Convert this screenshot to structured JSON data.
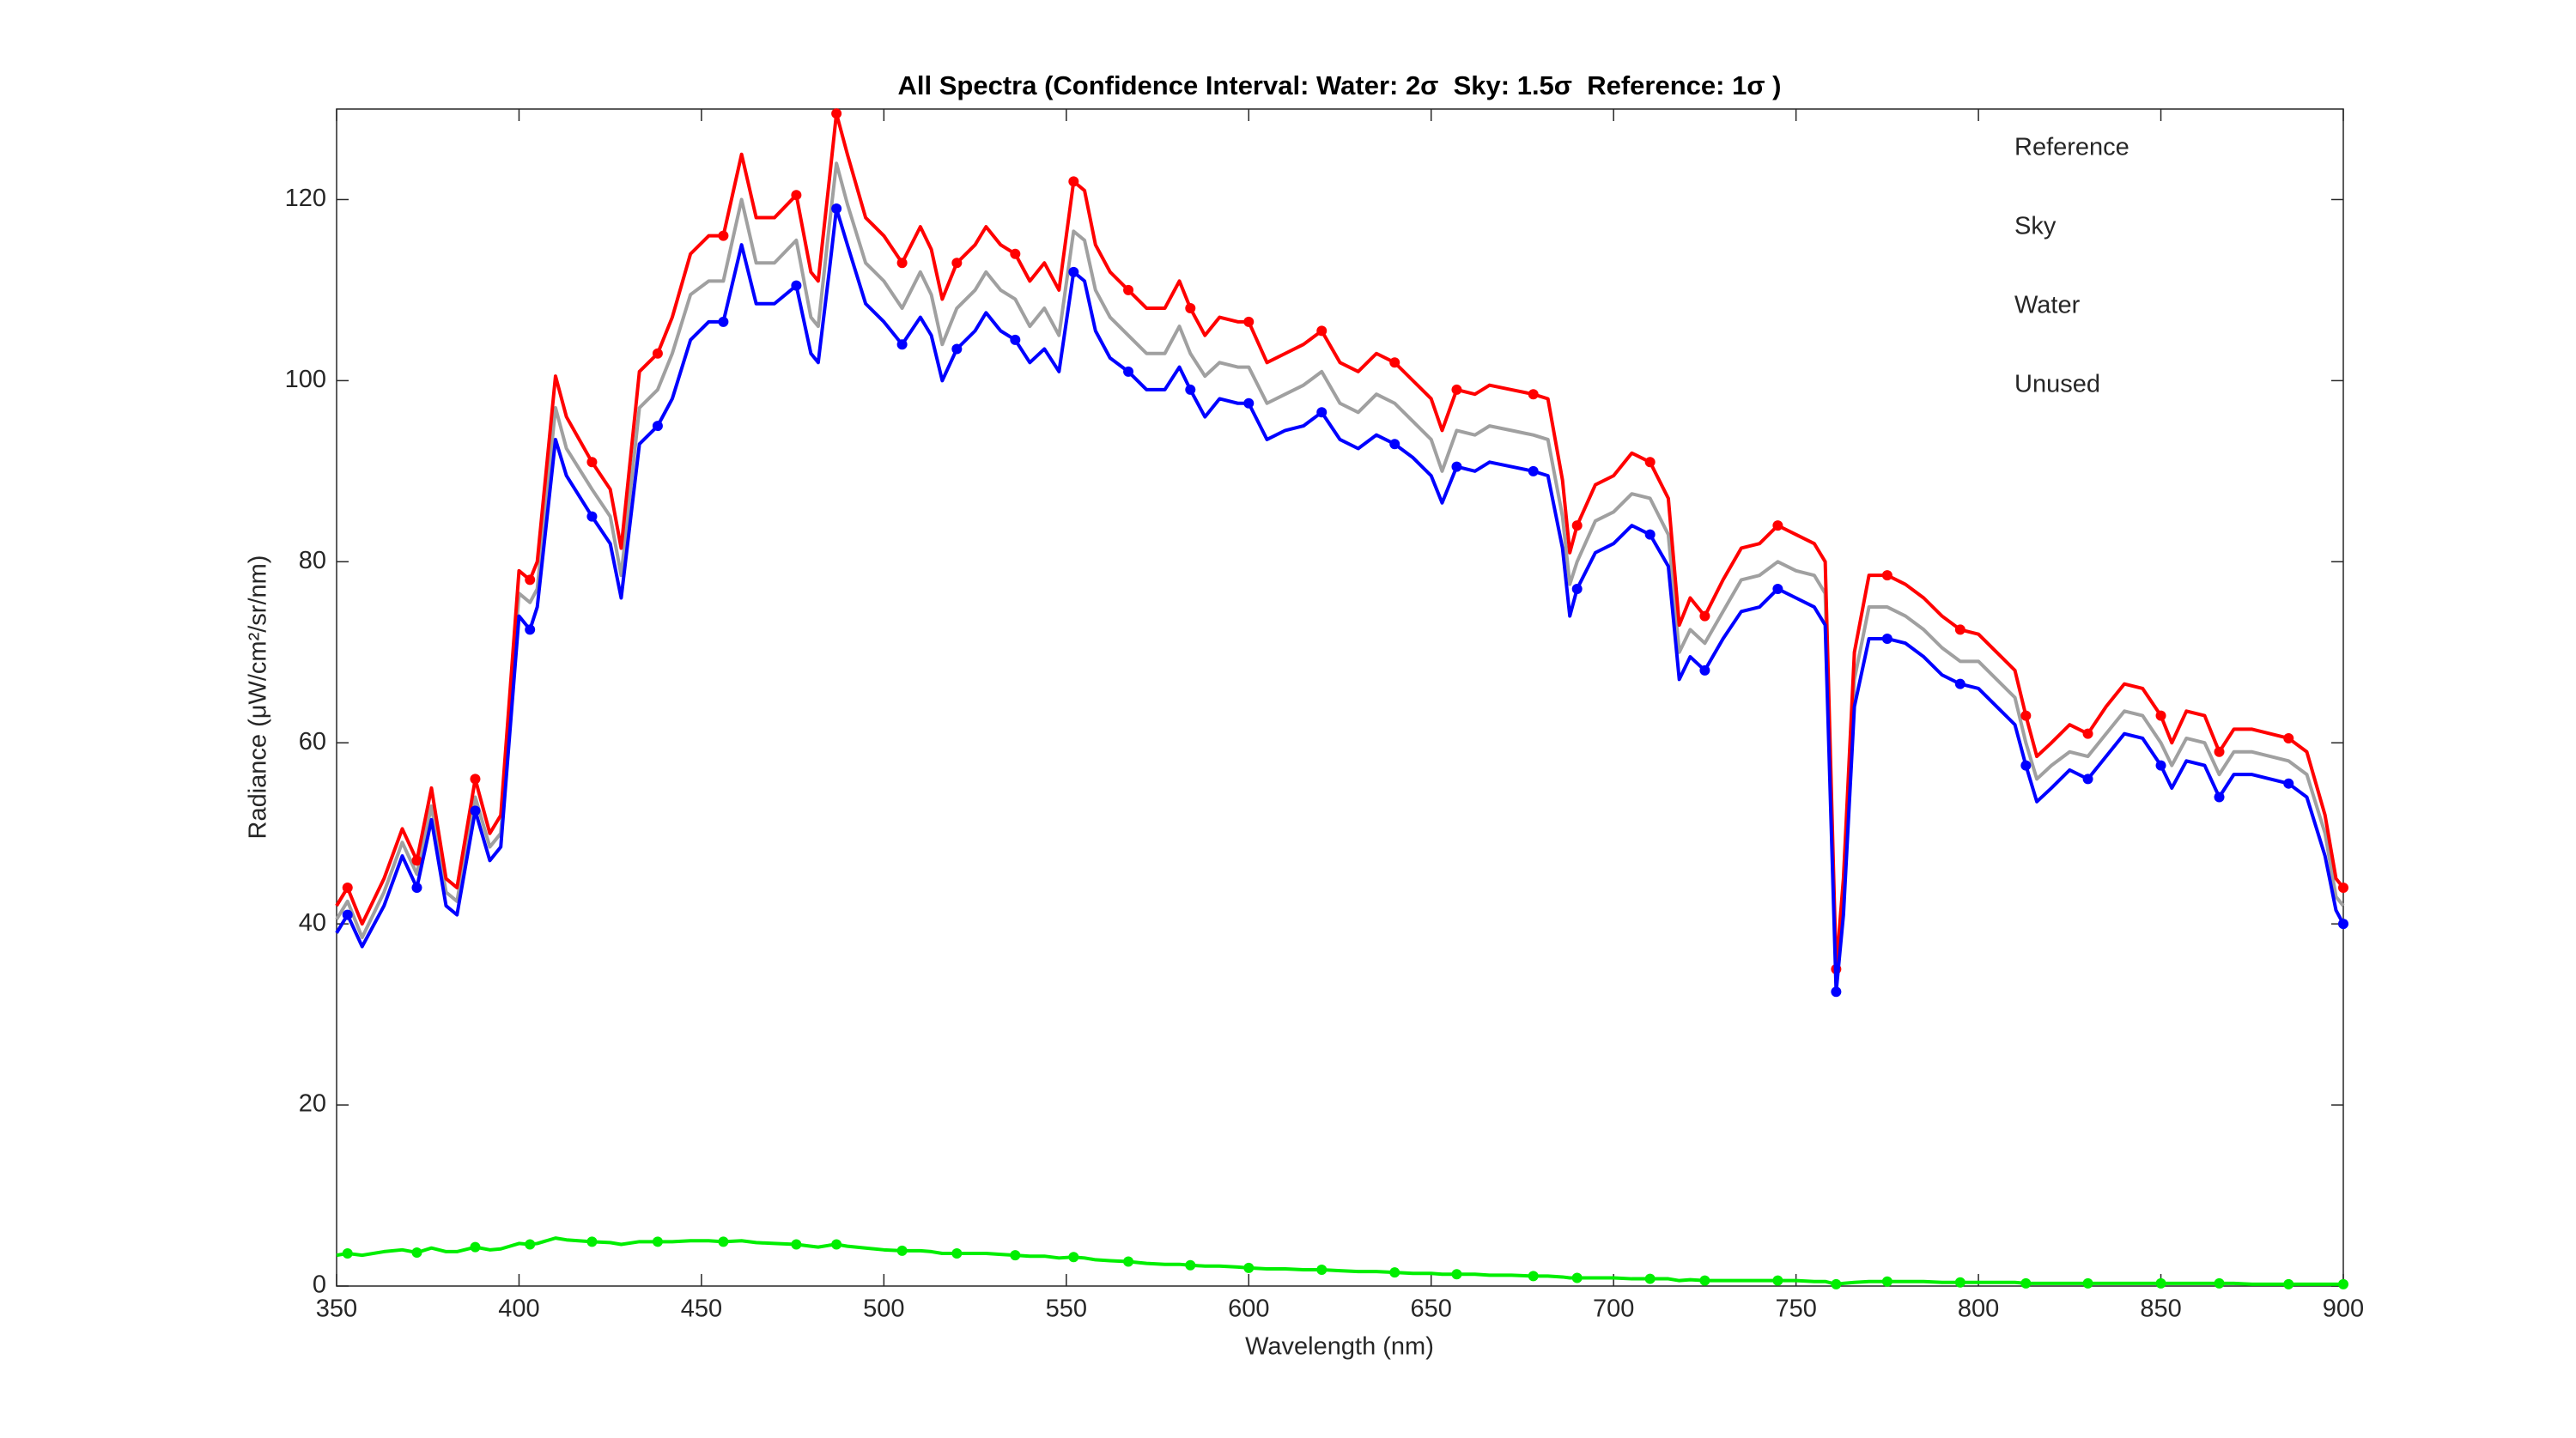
{
  "chart_data": {
    "type": "line",
    "title": "All Spectra (Confidence Interval: Water: 2σ  Sky: 1.5σ  Reference: 1σ )",
    "x_label": "Wavelength (nm)",
    "y_label": "Radiance (μW/cm²/sr/nm)",
    "xlim": [
      350,
      900
    ],
    "xticks": [
      350,
      400,
      450,
      500,
      550,
      600,
      650,
      700,
      750,
      800,
      850,
      900
    ],
    "ylim": [
      0,
      130
    ],
    "yticks": [
      0,
      20,
      40,
      60,
      80,
      100,
      120
    ],
    "legend": "upper-right",
    "x": [
      350,
      353,
      357,
      363,
      368,
      372,
      376,
      380,
      383,
      388,
      392,
      395,
      400,
      403,
      405,
      410,
      413,
      420,
      425,
      428,
      433,
      438,
      442,
      447,
      452,
      456,
      461,
      465,
      470,
      476,
      480,
      482,
      485,
      487,
      490,
      495,
      500,
      505,
      510,
      513,
      516,
      520,
      525,
      528,
      532,
      536,
      540,
      544,
      548,
      552,
      555,
      558,
      562,
      567,
      572,
      577,
      581,
      584,
      588,
      592,
      597,
      600,
      605,
      610,
      615,
      620,
      625,
      630,
      635,
      640,
      645,
      650,
      653,
      657,
      662,
      666,
      672,
      678,
      682,
      686,
      688,
      690,
      695,
      700,
      705,
      710,
      715,
      718,
      721,
      725,
      730,
      735,
      740,
      745,
      750,
      755,
      758,
      761,
      763,
      766,
      770,
      775,
      780,
      785,
      790,
      795,
      800,
      805,
      810,
      813,
      816,
      820,
      825,
      830,
      835,
      840,
      845,
      850,
      853,
      857,
      862,
      866,
      870,
      875,
      880,
      885,
      890,
      895,
      898,
      900
    ],
    "series": [
      {
        "name": "Reference",
        "color": "#ff0000",
        "markers": true,
        "values": [
          42,
          44,
          40,
          45,
          50.5,
          47,
          55,
          45,
          44,
          56,
          50,
          52,
          79,
          78,
          80,
          100.5,
          96,
          91,
          88,
          81.5,
          101,
          103,
          107,
          114,
          116,
          116,
          125,
          118,
          118,
          120.5,
          112,
          111,
          122,
          129.5,
          125,
          118,
          116,
          113,
          117,
          114.5,
          109,
          113,
          115,
          117,
          115,
          114,
          111,
          113,
          110,
          122,
          121,
          115,
          112,
          110,
          108,
          108,
          111,
          108,
          105,
          107,
          106.5,
          106.5,
          102,
          103,
          104,
          105.5,
          102,
          101,
          103,
          102,
          100,
          98,
          94.5,
          99,
          98.5,
          99.5,
          99,
          98.5,
          98,
          89,
          81,
          84,
          88.5,
          89.5,
          92,
          91,
          87,
          73,
          76,
          74,
          78,
          81.5,
          82,
          84,
          83,
          82,
          80,
          35,
          45,
          70,
          78.5,
          78.5,
          77.5,
          76,
          74,
          72.5,
          72,
          70,
          68,
          63,
          58.5,
          60,
          62,
          61,
          64,
          66.5,
          66,
          63,
          60,
          63.5,
          63,
          59,
          61.5,
          61.5,
          61,
          60.5,
          59,
          52,
          45,
          44
        ]
      },
      {
        "name": "Sky",
        "color": "#0000ff",
        "markers": true,
        "values": [
          39,
          41,
          37.5,
          42,
          47.5,
          44,
          51.5,
          42,
          41,
          52.5,
          47,
          48.5,
          74,
          72.5,
          75,
          93.5,
          89.5,
          85,
          82,
          76,
          93,
          95,
          98,
          104.5,
          106.5,
          106.5,
          115,
          108.5,
          108.5,
          110.5,
          103,
          102,
          112,
          119,
          115,
          108.5,
          106.5,
          104,
          107,
          105,
          100,
          103.5,
          105.5,
          107.5,
          105.5,
          104.5,
          102,
          103.5,
          101,
          112,
          111,
          105.5,
          102.5,
          101,
          99,
          99,
          101.5,
          99,
          96,
          98,
          97.5,
          97.5,
          93.5,
          94.5,
          95,
          96.5,
          93.5,
          92.5,
          94,
          93,
          91.5,
          89.5,
          86.5,
          90.5,
          90,
          91,
          90.5,
          90,
          89.5,
          81.5,
          74,
          77,
          81,
          82,
          84,
          83,
          79.5,
          67,
          69.5,
          68,
          71.5,
          74.5,
          75,
          77,
          76,
          75,
          73,
          32.5,
          41,
          64,
          71.5,
          71.5,
          71,
          69.5,
          67.5,
          66.5,
          66,
          64,
          62,
          57.5,
          53.5,
          55,
          57,
          56,
          58.5,
          61,
          60.5,
          57.5,
          55,
          58,
          57.5,
          54,
          56.5,
          56.5,
          56,
          55.5,
          54,
          47.5,
          41.5,
          40
        ]
      },
      {
        "name": "Water",
        "color": "#00ee00",
        "markers": true,
        "values": [
          3.4,
          3.6,
          3.4,
          3.8,
          4.0,
          3.7,
          4.2,
          3.8,
          3.8,
          4.3,
          4.0,
          4.1,
          4.7,
          4.6,
          4.7,
          5.3,
          5.1,
          4.9,
          4.8,
          4.6,
          4.9,
          4.9,
          4.9,
          5.0,
          5.0,
          4.9,
          5.0,
          4.8,
          4.7,
          4.6,
          4.4,
          4.3,
          4.5,
          4.6,
          4.4,
          4.2,
          4.0,
          3.9,
          3.9,
          3.8,
          3.6,
          3.6,
          3.6,
          3.6,
          3.5,
          3.4,
          3.3,
          3.3,
          3.1,
          3.2,
          3.1,
          2.9,
          2.8,
          2.7,
          2.5,
          2.4,
          2.4,
          2.3,
          2.2,
          2.2,
          2.1,
          2.0,
          1.9,
          1.9,
          1.8,
          1.8,
          1.7,
          1.6,
          1.6,
          1.5,
          1.4,
          1.4,
          1.3,
          1.3,
          1.3,
          1.2,
          1.2,
          1.1,
          1.1,
          1.0,
          0.9,
          0.9,
          0.9,
          0.9,
          0.8,
          0.8,
          0.8,
          0.6,
          0.7,
          0.6,
          0.6,
          0.6,
          0.6,
          0.6,
          0.6,
          0.5,
          0.5,
          0.2,
          0.3,
          0.4,
          0.5,
          0.5,
          0.5,
          0.5,
          0.4,
          0.4,
          0.4,
          0.4,
          0.4,
          0.3,
          0.3,
          0.3,
          0.3,
          0.3,
          0.3,
          0.3,
          0.3,
          0.3,
          0.3,
          0.3,
          0.3,
          0.3,
          0.3,
          0.2,
          0.2,
          0.2,
          0.2,
          0.2,
          0.2,
          0.2
        ]
      },
      {
        "name": "Unused",
        "color": "#a0a0a0",
        "markers": false,
        "values": [
          40.5,
          42.5,
          38.5,
          43.5,
          49,
          45.5,
          53,
          43.5,
          42.5,
          54,
          48.5,
          50,
          76.5,
          75.5,
          77,
          97,
          92.5,
          88,
          85,
          78.5,
          97,
          99,
          103,
          109.5,
          111,
          111,
          120,
          113,
          113,
          115.5,
          107,
          106,
          117,
          124,
          119.5,
          113,
          111,
          108,
          112,
          109.5,
          104,
          108,
          110,
          112,
          110,
          109,
          106,
          108,
          105,
          116.5,
          115.5,
          110,
          107,
          105,
          103,
          103,
          106,
          103,
          100.5,
          102,
          101.5,
          101.5,
          97.5,
          98.5,
          99.5,
          101,
          97.5,
          96.5,
          98.5,
          97.5,
          95.5,
          93.5,
          90,
          94.5,
          94,
          95,
          94.5,
          94,
          93.5,
          85,
          77.5,
          80,
          84.5,
          85.5,
          87.5,
          87,
          83,
          70,
          72.5,
          71,
          74.5,
          78,
          78.5,
          80,
          79,
          78.5,
          76.5,
          33.5,
          43,
          67,
          75,
          75,
          74,
          72.5,
          70.5,
          69,
          69,
          67,
          65,
          60,
          56,
          57.5,
          59,
          58.5,
          61,
          63.5,
          63,
          60,
          57.5,
          60.5,
          60,
          56.5,
          59,
          59,
          58.5,
          58,
          56.5,
          50,
          43,
          42
        ]
      }
    ]
  }
}
